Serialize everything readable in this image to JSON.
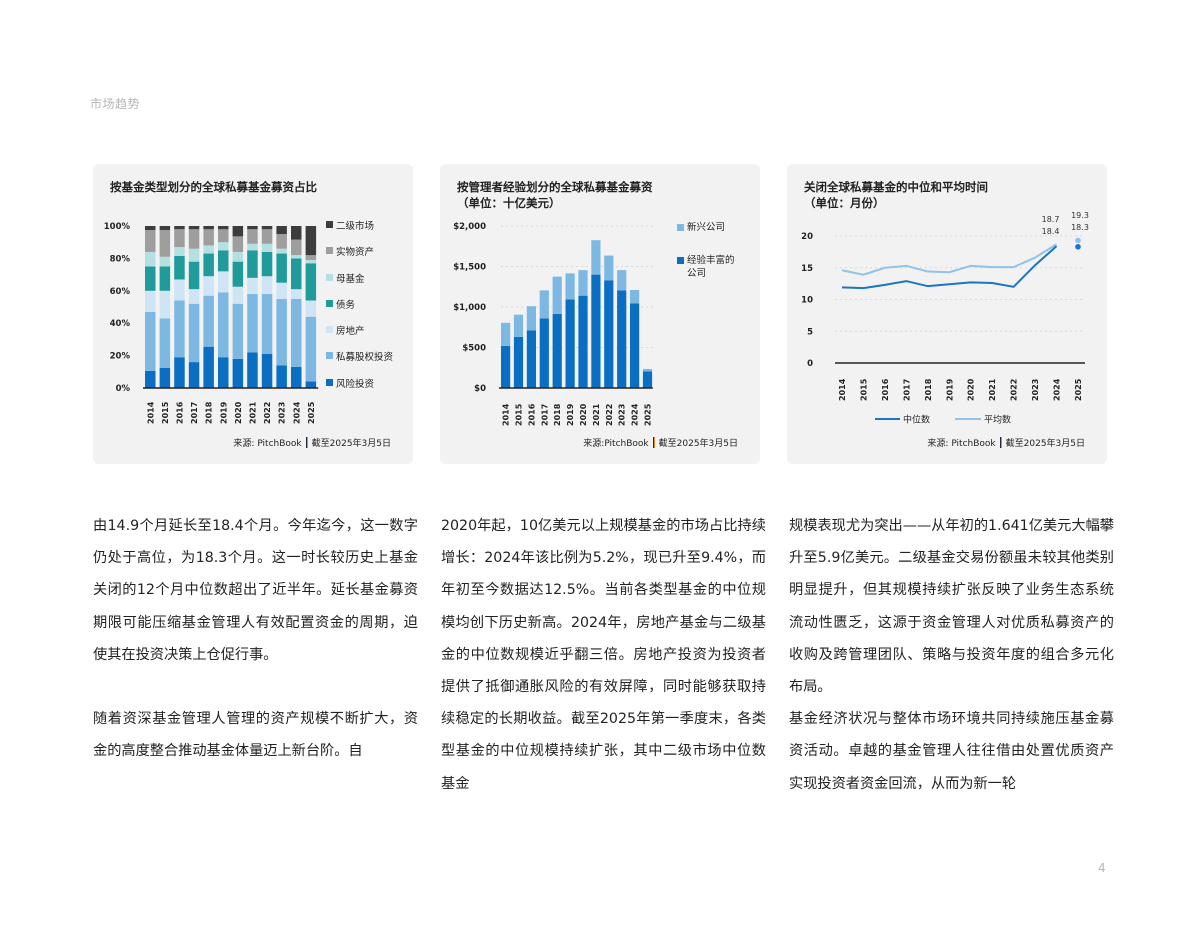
{
  "header": {
    "section": "市场趋势"
  },
  "page_number": "4",
  "colors": {
    "secondaries": "#3d3d3d",
    "real_assets": "#9e9e9e",
    "fund_of_funds": "#b4e0e2",
    "debt": "#1f9b9b",
    "real_estate": "#cfe5f6",
    "private_equity": "#7db8e3",
    "venture_capital": "#0a6fc2",
    "emerging": "#7db8e3",
    "experienced": "#0a6fc2",
    "median_line": "#1b74c5",
    "average_line": "#8ec3ea",
    "axis": "#222222",
    "card_bg": "#f2f2f2"
  },
  "cards": [
    {
      "title": "按基金类型划分的全球私募基金募资占比",
      "source_left": "来源: PitchBook",
      "source_right": "截至2025年3月5日",
      "legend": [
        "二级市场",
        "实物资产",
        "母基金",
        "债务",
        "房地产",
        "私募股权投资",
        "风险投资"
      ]
    },
    {
      "title_line1": "按管理者经验划分的全球私募基金募资",
      "title_line2": "（单位：十亿美元）",
      "source_left": "来源:PitchBook",
      "source_right": "截至2025年3月5日",
      "legend": [
        "新兴公司",
        "经验丰富的公司"
      ]
    },
    {
      "title_line1": "关闭全球私募基金的中位和平均时间",
      "title_line2": "（单位：月份）",
      "source_left": "来源: PitchBook",
      "source_right": "截至2025年3月5日",
      "legend": [
        "中位数",
        "平均数"
      ]
    }
  ],
  "chart_data": [
    {
      "type": "bar",
      "stacked": true,
      "percent": true,
      "title": "按基金类型划分的全球私募基金募资占比",
      "categories": [
        "2014",
        "2015",
        "2016",
        "2017",
        "2018",
        "2019",
        "2020",
        "2021",
        "2022",
        "2023",
        "2024",
        "2025"
      ],
      "yticks": [
        "0%",
        "20%",
        "40%",
        "60%",
        "80%",
        "100%"
      ],
      "ylim": [
        0,
        100
      ],
      "legend_position": "right",
      "series": [
        {
          "name": "风险投资",
          "values": [
            10.5,
            12.5,
            19,
            16,
            25.5,
            19,
            18,
            22,
            21,
            14,
            13,
            4
          ]
        },
        {
          "name": "私募股权投资",
          "values": [
            36.5,
            30.5,
            35,
            36,
            31.5,
            40,
            34,
            36,
            37,
            41,
            42,
            40
          ]
        },
        {
          "name": "房地产",
          "values": [
            13,
            17,
            13,
            9,
            12,
            13,
            10.5,
            10,
            11,
            10,
            6,
            10
          ]
        },
        {
          "name": "债务",
          "values": [
            15,
            15,
            14.5,
            17,
            14,
            13,
            15.5,
            17,
            15,
            18,
            19,
            23
          ]
        },
        {
          "name": "母基金",
          "values": [
            9,
            6,
            5.5,
            8,
            5,
            5,
            6,
            4,
            5,
            3,
            2,
            2
          ]
        },
        {
          "name": "实物资产",
          "values": [
            13.5,
            16.5,
            11,
            12,
            10,
            8,
            9.6,
            9,
            9,
            9,
            9.6,
            3
          ]
        },
        {
          "name": "二级市场",
          "values": [
            2.5,
            2.5,
            2,
            2,
            2,
            2,
            6.4,
            2,
            2,
            5,
            8.4,
            18
          ]
        }
      ],
      "source": "来源: PitchBook | 截至2025年3月5日"
    },
    {
      "type": "bar",
      "stacked": true,
      "title": "按管理者经验划分的全球私募基金募资（单位：十亿美元）",
      "categories": [
        "2014",
        "2015",
        "2016",
        "2017",
        "2018",
        "2019",
        "2020",
        "2021",
        "2022",
        "2023",
        "2024",
        "2025"
      ],
      "yticks": [
        "$0",
        "$500",
        "$1,000",
        "$1,500",
        "$2,000"
      ],
      "ylim": [
        0,
        2000
      ],
      "grid": true,
      "legend_position": "right",
      "series": [
        {
          "name": "经验丰富的公司",
          "values": [
            520,
            630,
            710,
            860,
            915,
            1095,
            1140,
            1400,
            1330,
            1205,
            1045,
            205
          ]
        },
        {
          "name": "新兴公司",
          "values": [
            285,
            275,
            300,
            345,
            460,
            320,
            315,
            425,
            305,
            250,
            165,
            30
          ]
        }
      ],
      "source": "来源:PitchBook | 截至2025年3月5日"
    },
    {
      "type": "line",
      "title": "关闭全球私募基金的中位和平均时间（单位：月份）",
      "categories": [
        "2014",
        "2015",
        "2016",
        "2017",
        "2018",
        "2019",
        "2020",
        "2021",
        "2022",
        "2023",
        "2024",
        "2025"
      ],
      "yticks": [
        "0",
        "5",
        "10",
        "15",
        "20"
      ],
      "ylim": [
        0,
        20
      ],
      "grid": true,
      "legend_position": "bottom",
      "series": [
        {
          "name": "中位数",
          "values": [
            11.9,
            11.8,
            12.3,
            12.9,
            12.1,
            12.4,
            12.7,
            12.6,
            12.0,
            15.4,
            18.4,
            18.3
          ]
        },
        {
          "name": "平均数",
          "values": [
            14.6,
            13.9,
            15.0,
            15.3,
            14.4,
            14.3,
            15.3,
            15.1,
            15.1,
            16.6,
            18.7,
            19.3
          ]
        }
      ],
      "annotations": [
        {
          "x": "2024",
          "series": "平均数",
          "label": "18.7"
        },
        {
          "x": "2024",
          "series": "中位数",
          "label": "18.4"
        },
        {
          "x": "2025",
          "series": "平均数",
          "label": "19.3"
        },
        {
          "x": "2025",
          "series": "中位数",
          "label": "18.3"
        }
      ],
      "note": "2025 values shown as single points (year-to-date)",
      "source": "来源: PitchBook | 截至2025年3月5日"
    }
  ],
  "body_text": {
    "col1": {
      "p1": "由14.9个月延长至18.4个月。今年迄今，这一数字仍处于高位，为18.3个月。这一时长较历史上基金关闭的12个月中位数超出了近半年。延长基金募资期限可能压缩基金管理人有效配置资金的周期，迫使其在投资决策上仓促行事。",
      "p2": "随着资深基金管理人管理的资产规模不断扩大，资金的高度整合推动基金体量迈上新台阶。自"
    },
    "col2": {
      "p1": "2020年起，10亿美元以上规模基金的市场占比持续增长：2024年该比例为5.2%，现已升至9.4%，而年初至今数据达12.5%。当前各类型基金的中位规模均创下历史新高。2024年，房地产基金与二级基金的中位数规模近乎翻三倍。房地产投资为投资者提供了抵御通胀风险的有效屏障，同时能够获取持续稳定的长期收益。截至2025年第一季度末，各类型基金的中位规模持续扩张，其中二级市场中位数基金"
    },
    "col3": {
      "p1": "规模表现尤为突出——从年初的1.641亿美元大幅攀升至5.9亿美元。二级基金交易份额虽未较其他类别明显提升，但其规模持续扩张反映了业务生态系统流动性匮乏，这源于资金管理人对优质私募资产的收购及跨管理团队、策略与投资年度的组合多元化布局。",
      "p2": "基金经济状况与整体市场环境共同持续施压基金募资活动。卓越的基金管理人往往借由处置优质资产实现投资者资金回流，从而为新一轮"
    }
  }
}
